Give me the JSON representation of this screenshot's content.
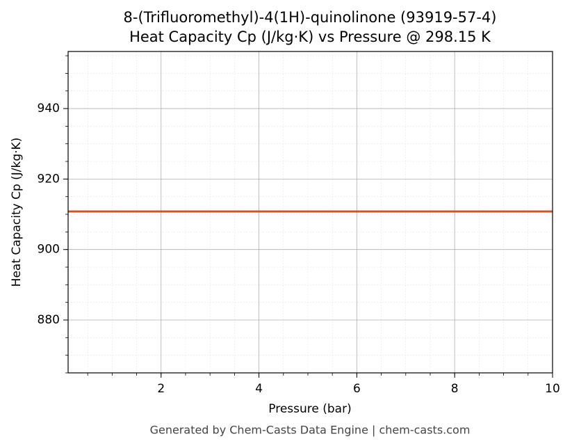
{
  "chart_data": {
    "type": "line",
    "title": "8-(Trifluoromethyl)-4(1H)-quinolinone (93919-57-4)",
    "subtitle": "Heat Capacity Cp (J/kg·K) vs Pressure @ 298.15 K",
    "x_label": "Pressure (bar)",
    "y_label": "Heat Capacity Cp (J/kg·K)",
    "footer": "Generated by Chem-Casts Data Engine | chem-casts.com",
    "x": [
      0.1,
      10
    ],
    "series": [
      {
        "name": "Cp",
        "color": "#d45326",
        "values": [
          910.8,
          910.8
        ]
      }
    ],
    "xlim": [
      0.1,
      10
    ],
    "xticks": [
      2,
      4,
      6,
      8,
      10
    ],
    "ylim": [
      865,
      956.2
    ],
    "yticks": [
      880,
      900,
      920,
      940
    ],
    "grid": true
  }
}
